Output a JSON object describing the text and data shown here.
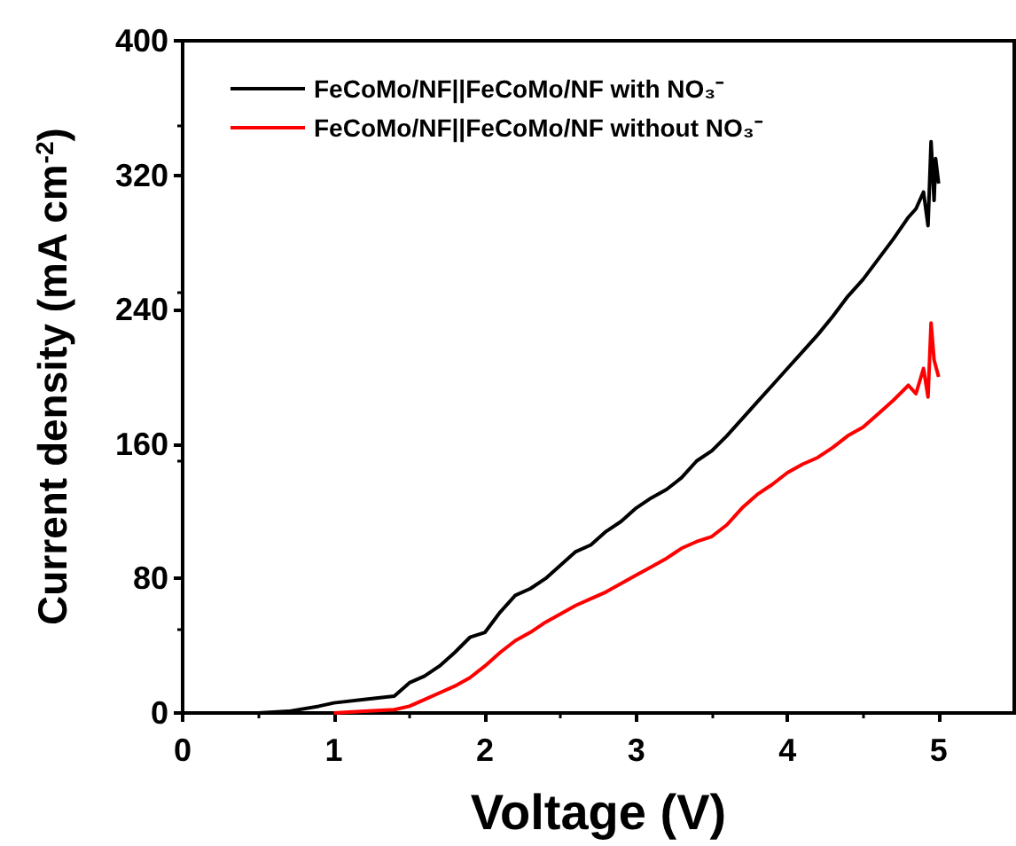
{
  "chart_data": {
    "type": "line",
    "xlabel": "Voltage (V)",
    "ylabel": "Current density (mA cm$^{-2}$)",
    "xlim": [
      0,
      5.5
    ],
    "xticks": [
      0,
      1,
      2,
      3,
      4,
      5
    ],
    "ylim": [
      0,
      400
    ],
    "yticks": [
      0,
      80,
      160,
      240,
      320,
      400
    ],
    "grid": false,
    "legend": "top left",
    "marker": "none",
    "line_style": "solid",
    "series": [
      {
        "name": "FeCoMo/NF||FeCoMo/NF with NO₃⁻",
        "color": "#000000",
        "x": [
          0.5,
          0.7,
          0.9,
          1.0,
          1.2,
          1.4,
          1.5,
          1.6,
          1.7,
          1.8,
          1.9,
          2.0,
          2.1,
          2.2,
          2.3,
          2.4,
          2.5,
          2.6,
          2.7,
          2.8,
          2.9,
          3.0,
          3.1,
          3.2,
          3.3,
          3.4,
          3.5,
          3.6,
          3.7,
          3.8,
          3.9,
          4.0,
          4.1,
          4.2,
          4.3,
          4.4,
          4.5,
          4.6,
          4.7,
          4.8,
          4.85,
          4.9,
          4.93,
          4.95,
          4.97,
          4.98,
          5.0
        ],
        "values": [
          0,
          1,
          4,
          6,
          8,
          10,
          18,
          22,
          28,
          36,
          45,
          48,
          60,
          70,
          74,
          80,
          88,
          96,
          100,
          108,
          114,
          122,
          128,
          133,
          140,
          150,
          156,
          165,
          175,
          185,
          195,
          205,
          215,
          225,
          236,
          248,
          258,
          270,
          282,
          295,
          300,
          310,
          290,
          340,
          305,
          330,
          315
        ]
      },
      {
        "name": "FeCoMo/NF||FeCoMo/NF without NO₃⁻",
        "color": "#ff0000",
        "x": [
          1.0,
          1.2,
          1.4,
          1.5,
          1.6,
          1.7,
          1.8,
          1.9,
          2.0,
          2.1,
          2.2,
          2.3,
          2.4,
          2.5,
          2.6,
          2.7,
          2.8,
          2.9,
          3.0,
          3.1,
          3.2,
          3.3,
          3.4,
          3.5,
          3.6,
          3.7,
          3.8,
          3.9,
          4.0,
          4.1,
          4.2,
          4.3,
          4.4,
          4.5,
          4.6,
          4.7,
          4.8,
          4.85,
          4.9,
          4.93,
          4.95,
          4.97,
          5.0
        ],
        "values": [
          0,
          1,
          2,
          4,
          8,
          12,
          16,
          21,
          28,
          36,
          43,
          48,
          54,
          59,
          64,
          68,
          72,
          77,
          82,
          87,
          92,
          98,
          102,
          105,
          112,
          122,
          130,
          136,
          143,
          148,
          152,
          158,
          165,
          170,
          178,
          186,
          195,
          190,
          205,
          188,
          232,
          210,
          200
        ]
      }
    ]
  }
}
